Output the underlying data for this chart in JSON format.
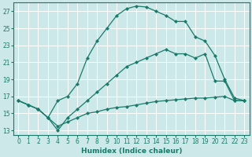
{
  "xlabel": "Humidex (Indice chaleur)",
  "bg_color": "#cce8e8",
  "grid_color": "#ffffff",
  "line_color": "#1a7a6a",
  "xlim": [
    -0.5,
    23.5
  ],
  "ylim": [
    12.5,
    28.0
  ],
  "xticks": [
    0,
    1,
    2,
    3,
    4,
    5,
    6,
    7,
    8,
    9,
    10,
    11,
    12,
    13,
    14,
    15,
    16,
    17,
    18,
    19,
    20,
    21,
    22,
    23
  ],
  "yticks": [
    13,
    15,
    17,
    19,
    21,
    23,
    25,
    27
  ],
  "line1_x": [
    0,
    1,
    2,
    3,
    4,
    5,
    6,
    7,
    8,
    9,
    10,
    11,
    12,
    13,
    14,
    15,
    16,
    17,
    18,
    19,
    20,
    21,
    22,
    23
  ],
  "line1_y": [
    16.5,
    16.0,
    15.5,
    14.5,
    16.5,
    17.0,
    18.5,
    21.5,
    23.5,
    25.0,
    26.5,
    27.3,
    27.6,
    27.5,
    27.0,
    26.5,
    25.8,
    25.8,
    24.0,
    23.5,
    21.8,
    19.0,
    16.8,
    16.5
  ],
  "line2_x": [
    0,
    1,
    2,
    3,
    4,
    5,
    6,
    7,
    8,
    9,
    10,
    11,
    12,
    13,
    14,
    15,
    16,
    17,
    18,
    19,
    20,
    21,
    22,
    23
  ],
  "line2_y": [
    16.5,
    16.0,
    15.5,
    14.5,
    13.0,
    14.5,
    15.5,
    16.5,
    17.5,
    18.5,
    19.5,
    20.5,
    21.0,
    21.5,
    22.0,
    22.5,
    22.0,
    22.0,
    21.5,
    22.0,
    18.8,
    18.8,
    16.5,
    16.5
  ],
  "line3_x": [
    0,
    1,
    2,
    3,
    4,
    5,
    6,
    7,
    8,
    9,
    10,
    11,
    12,
    13,
    14,
    15,
    16,
    17,
    18,
    19,
    20,
    21,
    22,
    23
  ],
  "line3_y": [
    16.5,
    16.0,
    15.5,
    14.5,
    13.5,
    14.0,
    14.5,
    15.0,
    15.2,
    15.5,
    15.7,
    15.8,
    16.0,
    16.2,
    16.4,
    16.5,
    16.6,
    16.7,
    16.8,
    16.8,
    16.9,
    17.0,
    16.5,
    16.5
  ]
}
